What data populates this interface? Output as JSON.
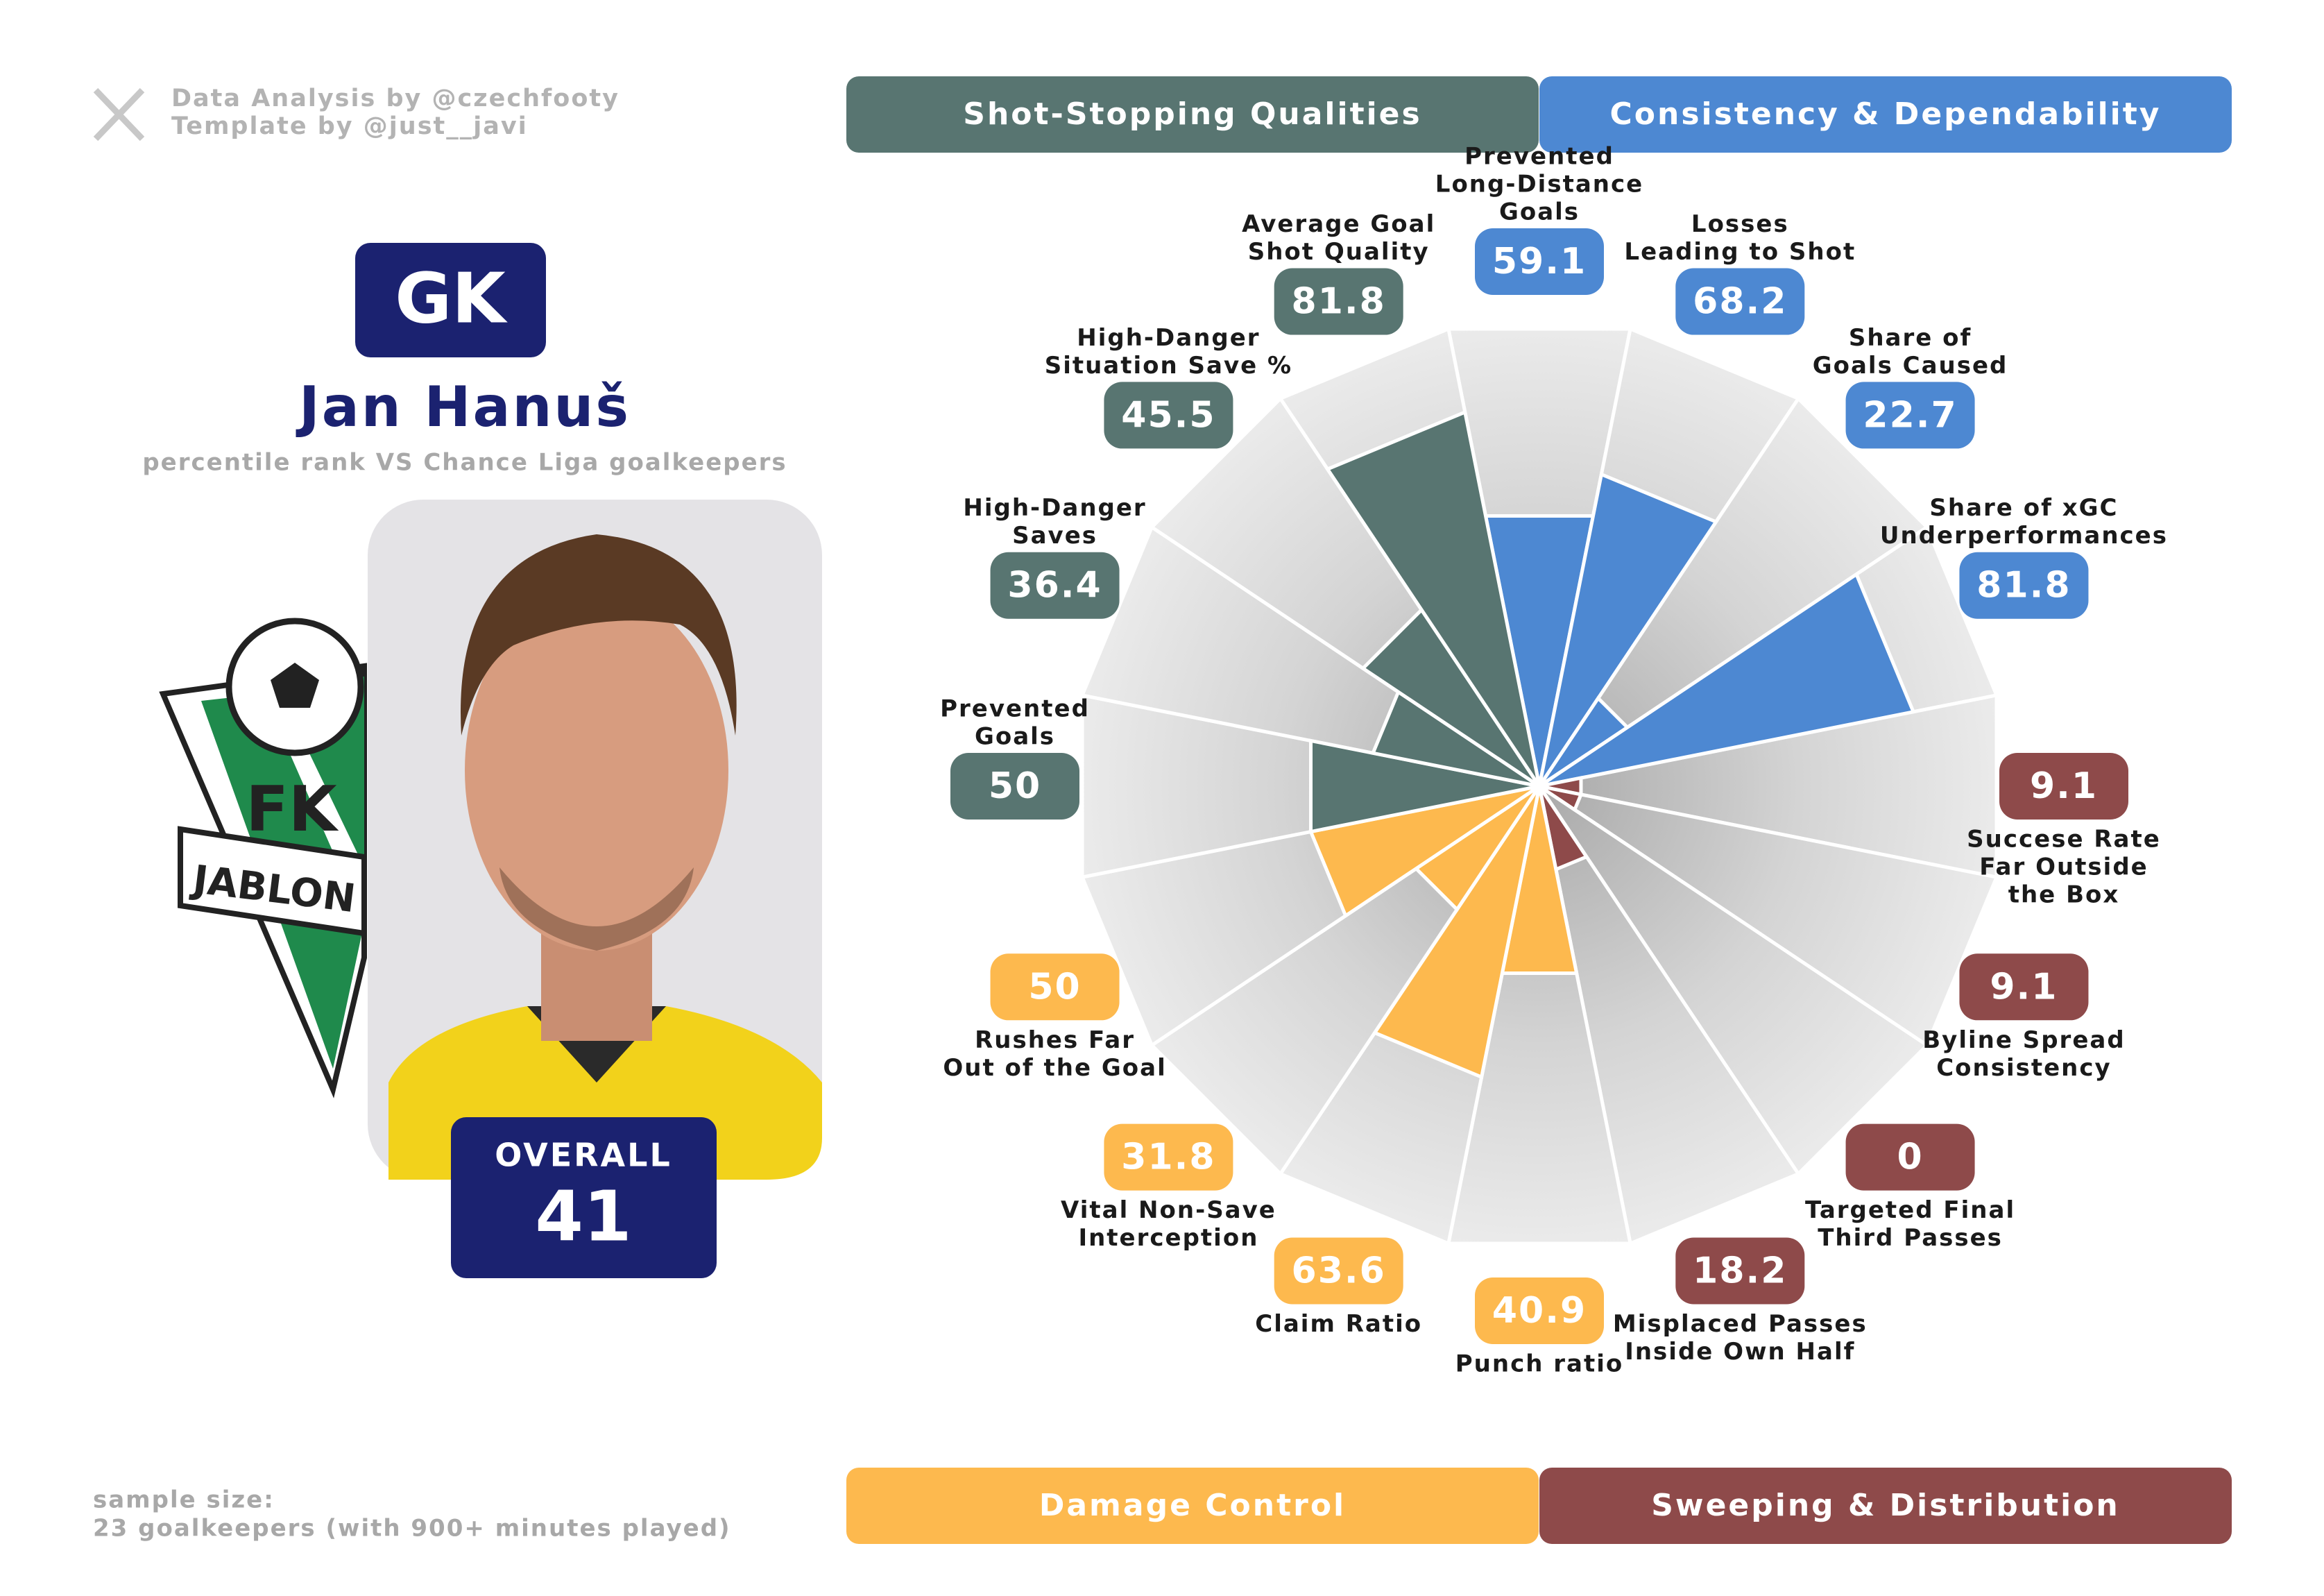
{
  "chart_data": {
    "type": "polar_bar",
    "credits": [
      "Data Analysis by @czechfooty",
      "Template by @just__javi"
    ],
    "position": "GK",
    "title": "Jan Hanuš",
    "subtitle": "percentile rank VS Chance Liga goalkeepers",
    "club_logo_text": [
      "FK",
      "JABLON"
    ],
    "overall_label": "OVERALL",
    "overall_value": 41,
    "footnote": [
      "sample size:",
      "23 goalkeepers (with 900+ minutes played)"
    ],
    "groups": [
      {
        "name": "Shot-Stopping Qualities",
        "color": "#587571"
      },
      {
        "name": "Consistency & Dependability",
        "color": "#4d88d2"
      },
      {
        "name": "Damage Control",
        "color": "#fdb94e"
      },
      {
        "name": "Sweeping & Distribution",
        "color": "#8e4a4a"
      }
    ],
    "categories": [
      [
        "Prevented",
        "Long-Distance",
        "Goals"
      ],
      [
        "Losses",
        "Leading to Shot"
      ],
      [
        "Share of",
        "Goals Caused"
      ],
      [
        "Share of xGC",
        "Underperformances"
      ],
      [
        "Succese Rate",
        "Far Outside",
        "the Box"
      ],
      [
        "Byline Spread",
        "Consistency"
      ],
      [
        "Targeted Final",
        "Third Passes"
      ],
      [
        "Misplaced Passes",
        "Inside Own Half"
      ],
      [
        "Punch ratio"
      ],
      [
        "Claim Ratio"
      ],
      [
        "Vital Non-Save",
        "Interception"
      ],
      [
        "Rushes Far",
        "Out of the Goal"
      ],
      [
        "Prevented",
        "Goals"
      ],
      [
        "High-Danger",
        "Saves"
      ],
      [
        "High-Danger",
        "Situation Save %"
      ],
      [
        "Average Goal",
        "Shot Quality"
      ]
    ],
    "values": [
      59.1,
      68.2,
      22.7,
      81.8,
      9.1,
      9.1,
      0,
      18.2,
      40.9,
      63.6,
      31.8,
      50,
      50,
      36.4,
      45.5,
      81.8
    ],
    "colors": [
      "#4d88d2",
      "#4d88d2",
      "#4d88d2",
      "#4d88d2",
      "#8e4a4a",
      "#8e4a4a",
      "#8e4a4a",
      "#8e4a4a",
      "#fdb94e",
      "#fdb94e",
      "#fdb94e",
      "#fdb94e",
      "#587571",
      "#587571",
      "#587571",
      "#587571"
    ],
    "ylim": [
      0,
      100
    ]
  }
}
